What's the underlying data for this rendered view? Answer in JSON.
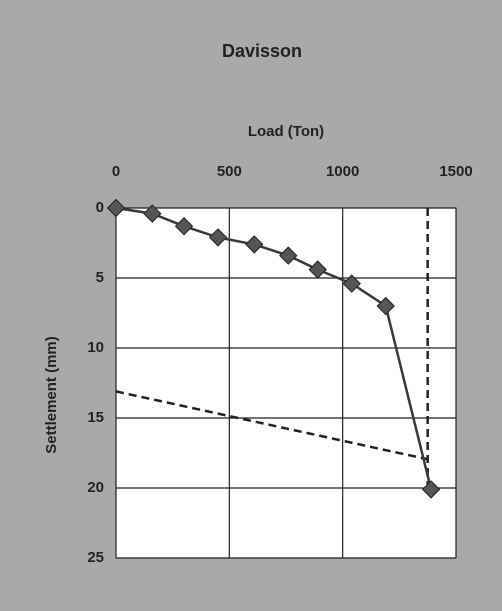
{
  "chart_data": {
    "type": "line",
    "title": "Davisson",
    "xlabel": "Load (Ton)",
    "ylabel": "Settlement (mm)",
    "xlim": [
      0,
      1500
    ],
    "xticks": [
      0,
      500,
      1000,
      1500
    ],
    "ylim": [
      0,
      25
    ],
    "yticks": [
      0,
      5,
      10,
      15,
      20,
      25
    ],
    "y_inverted": true,
    "x_axis_top": true,
    "grid": true,
    "series": [
      {
        "color": "#3a3a3a",
        "x": [
          0,
          160,
          300,
          450,
          610,
          760,
          890,
          1040,
          1190,
          1390
        ],
        "values": [
          0,
          0.4,
          1.3,
          2.1,
          2.6,
          3.4,
          4.4,
          5.4,
          7.0,
          20.1
        ]
      }
    ],
    "reference_lines": [
      {
        "color": "#222222",
        "x": [
          1375,
          1375
        ],
        "values": [
          0,
          20.1
        ]
      },
      {
        "color": "#222222",
        "x": [
          0,
          1390
        ],
        "values": [
          13.1,
          18.0
        ]
      }
    ]
  }
}
